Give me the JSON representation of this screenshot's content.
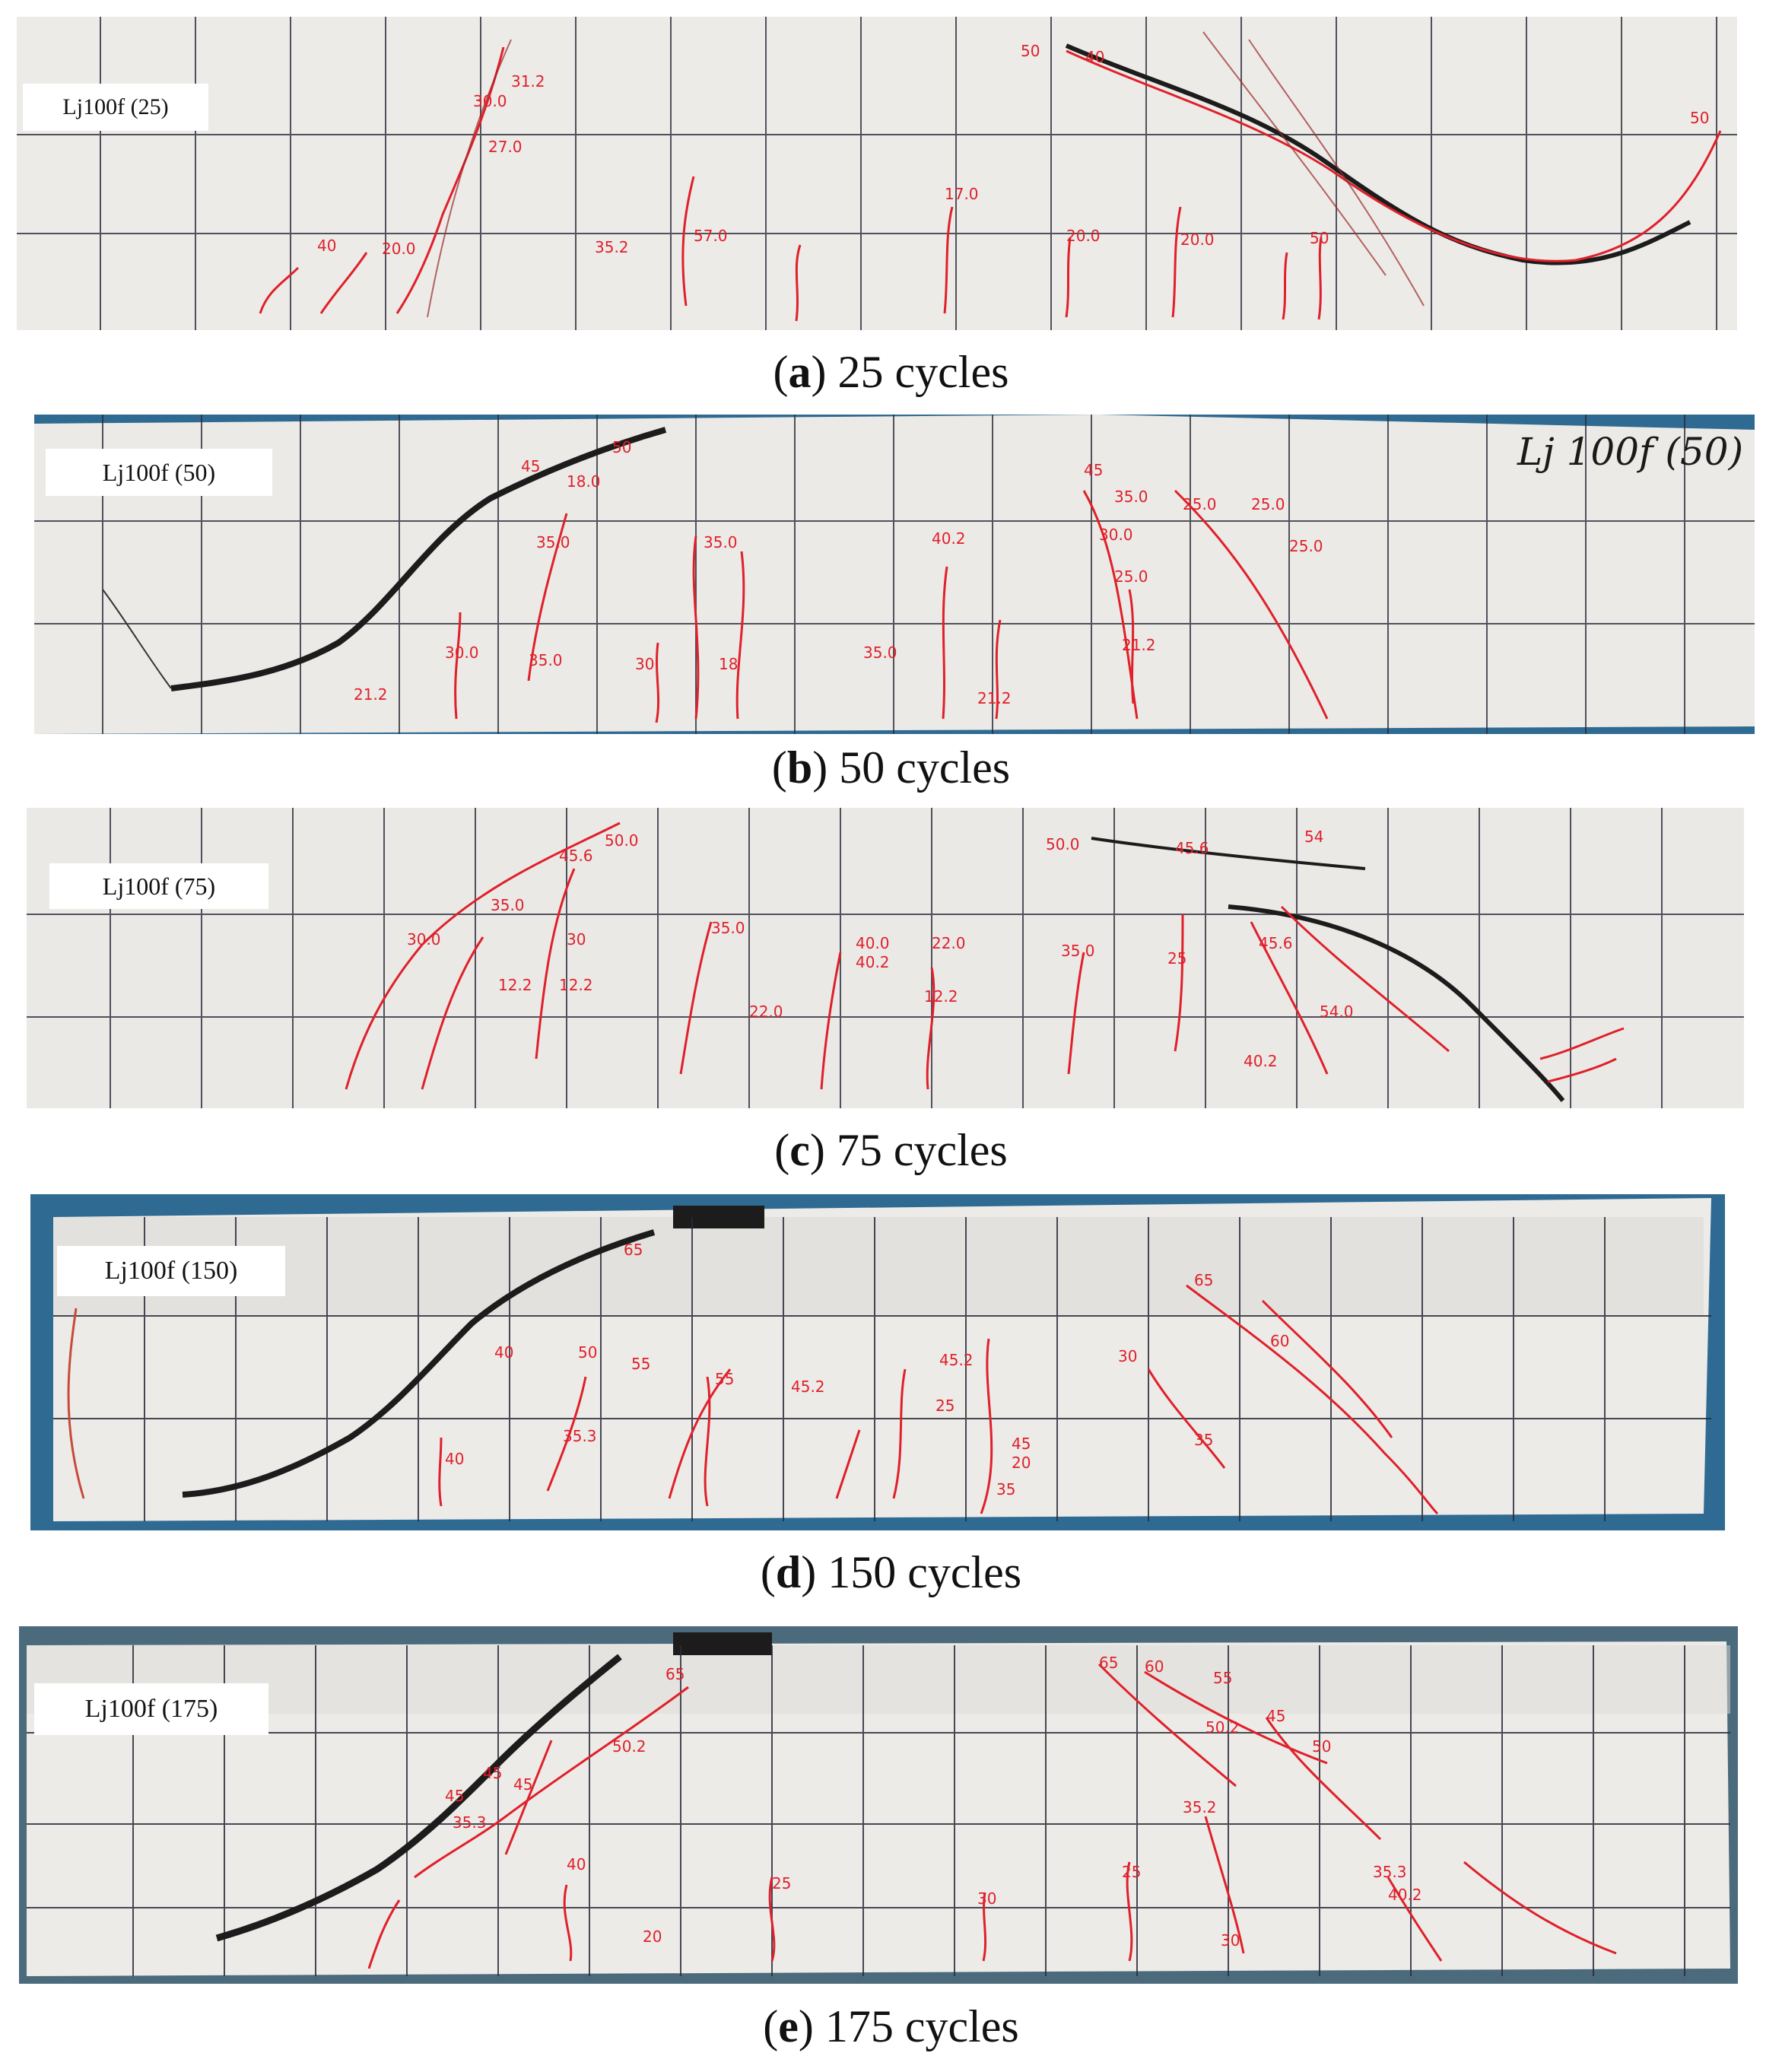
{
  "figure": {
    "panels": [
      {
        "id": "a",
        "specimen_label": "Lj100f (25)",
        "caption_letter": "a",
        "caption_text": "25 cycles",
        "handwritten_label": ""
      },
      {
        "id": "b",
        "specimen_label": "Lj100f (50)",
        "caption_letter": "b",
        "caption_text": "50 cycles",
        "handwritten_label": "Lj 100f (50)"
      },
      {
        "id": "c",
        "specimen_label": "Lj100f (75)",
        "caption_letter": "c",
        "caption_text": "75 cycles",
        "handwritten_label": ""
      },
      {
        "id": "d",
        "specimen_label": "Lj100f  (150)",
        "caption_letter": "d",
        "caption_text": "150 cycles",
        "handwritten_label": ""
      },
      {
        "id": "e",
        "specimen_label": "Lj100f (175)",
        "caption_letter": "e",
        "caption_text": "175 cycles",
        "handwritten_label": ""
      }
    ],
    "colors": {
      "beam_surface": "#ecebe8",
      "grid_line": "#2b2b3a",
      "crack_marking": "#e0202a",
      "main_crack": "#1c1c1c",
      "background_blue": "#2f6a93",
      "wire_yellow": "#d8c23a"
    }
  }
}
